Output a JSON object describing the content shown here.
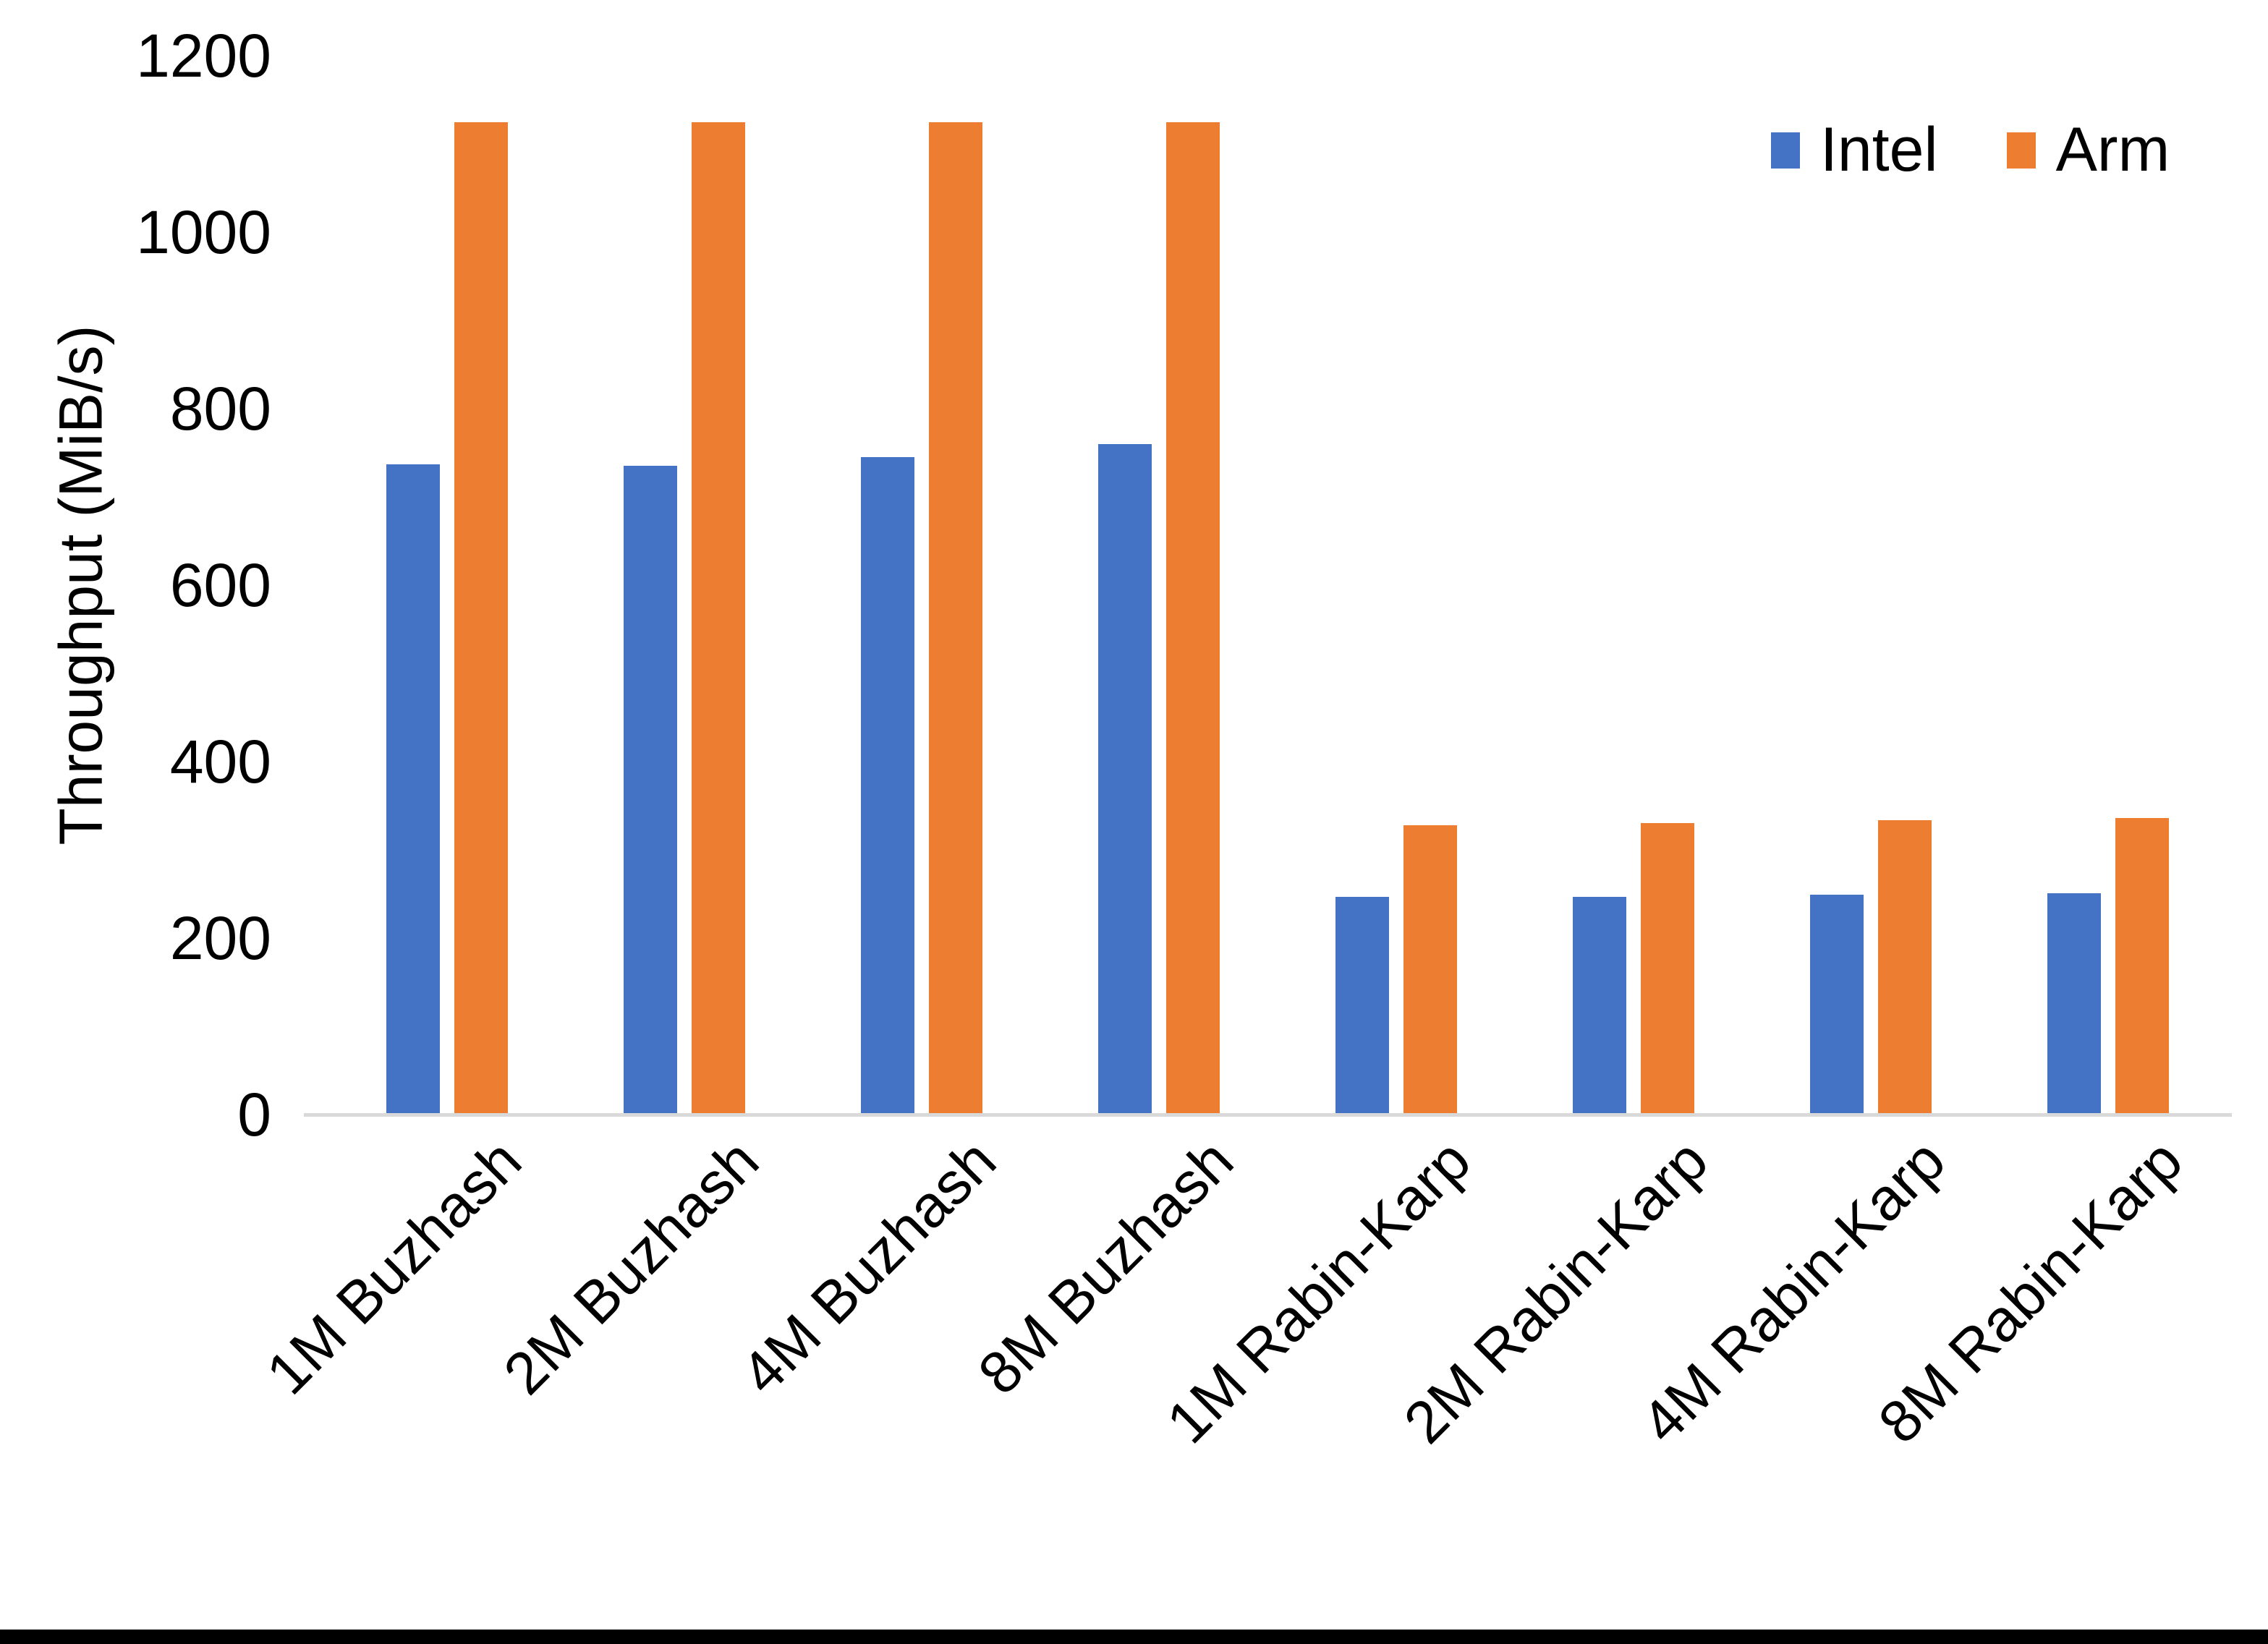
{
  "chart_data": {
    "type": "bar",
    "title": "",
    "xlabel": "",
    "ylabel": "Throughput (MiB/s)",
    "ylim": [
      0,
      1200
    ],
    "yticks": [
      0,
      200,
      400,
      600,
      800,
      1000,
      1200
    ],
    "grid": false,
    "legend_position": "top-right",
    "axis_line_color": "#D9D9D9",
    "background_color": "#ffffff",
    "text_color": "#000000",
    "categories": [
      "1M Buzhash",
      "2M Buzhash",
      "4M Buzhash",
      "8M Buzhash",
      "1M Rabin-Karp",
      "2M Rabin-Karp",
      "4M Rabin-Karp",
      "8M Rabin-Karp"
    ],
    "series": [
      {
        "name": "Intel",
        "color": "#4472C4",
        "values": [
          737,
          735,
          745,
          760,
          247,
          247,
          249,
          251
        ]
      },
      {
        "name": "Arm",
        "color": "#ED7D31",
        "values": [
          1125,
          1125,
          1125,
          1125,
          328,
          330,
          334,
          336
        ]
      }
    ]
  }
}
